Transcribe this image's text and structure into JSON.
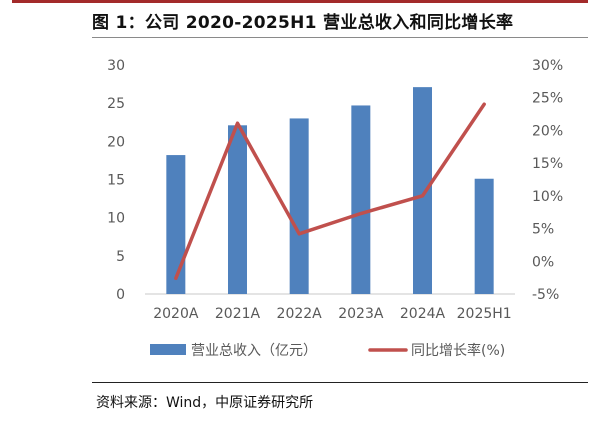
{
  "figure": {
    "title": "图 1：公司 2020-2025H1 营业总收入和同比增长率",
    "source": "资料来源：Wind，中原证券研究所"
  },
  "colors": {
    "bar": "#4f81bd",
    "line": "#c0504d",
    "axis_text": "#595959",
    "rule_top": "#a32a2a"
  },
  "chart_data": {
    "type": "bar",
    "categories": [
      "2020A",
      "2021A",
      "2022A",
      "2023A",
      "2024A",
      "2025H1"
    ],
    "series": [
      {
        "name": "营业总收入（亿元）",
        "type": "bar",
        "axis": "left",
        "values": [
          18.2,
          22.1,
          23.0,
          24.7,
          27.1,
          15.1
        ]
      },
      {
        "name": "同比增长率(%)",
        "type": "line",
        "axis": "right",
        "values": [
          -2.6,
          21.1,
          4.2,
          7.3,
          10.0,
          24.0
        ]
      }
    ],
    "y_left": {
      "min": 0,
      "max": 30,
      "ticks": [
        "0",
        "5",
        "10",
        "15",
        "20",
        "25",
        "30"
      ]
    },
    "y_right": {
      "min": -5,
      "max": 30,
      "ticks": [
        "-5%",
        "0%",
        "5%",
        "10%",
        "15%",
        "20%",
        "25%",
        "30%"
      ]
    },
    "grid": false,
    "legend_position": "bottom"
  }
}
